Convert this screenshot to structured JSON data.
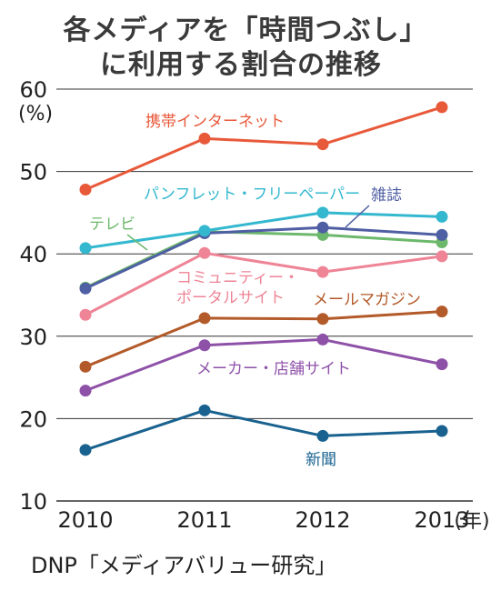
{
  "title_line1": "各メディアを「時間つぶし」",
  "title_line2": "に利用する割合の推移",
  "source": "DNP「メディアバリュー研究」",
  "chart_data": {
    "type": "line",
    "title": "各メディアを「時間つぶし」に利用する割合の推移",
    "x": [
      "2010",
      "2011",
      "2012",
      "2013"
    ],
    "x_unit": "(年)",
    "y_unit": "(%)",
    "ylim": [
      10,
      60
    ],
    "yticks": [
      10,
      20,
      30,
      40,
      50,
      60
    ],
    "grid": true,
    "series": [
      {
        "name": "携帯インターネット",
        "color": "#e8593a",
        "values": [
          47.8,
          54.0,
          53.3,
          57.8
        ]
      },
      {
        "name": "パンフレット・フリーペーパー",
        "color": "#33b8cf",
        "values": [
          40.7,
          42.8,
          45.0,
          44.5
        ]
      },
      {
        "name": "雑誌",
        "color": "#4f5fa3",
        "values": [
          35.8,
          42.5,
          43.2,
          42.3
        ]
      },
      {
        "name": "テレビ",
        "color": "#6cb86c",
        "values": [
          35.9,
          42.7,
          42.3,
          41.4
        ]
      },
      {
        "name": "コミュニティー・ポータルサイト",
        "color": "#ee8496",
        "values": [
          32.6,
          40.1,
          37.8,
          39.7
        ]
      },
      {
        "name": "メールマガジン",
        "color": "#b35a2a",
        "values": [
          26.3,
          32.2,
          32.1,
          33.0
        ]
      },
      {
        "name": "メーカー・店舗サイト",
        "color": "#8e51a8",
        "values": [
          23.4,
          28.9,
          29.6,
          26.6
        ]
      },
      {
        "name": "新聞",
        "color": "#19628f",
        "values": [
          16.2,
          21.0,
          17.9,
          18.5
        ]
      }
    ]
  }
}
